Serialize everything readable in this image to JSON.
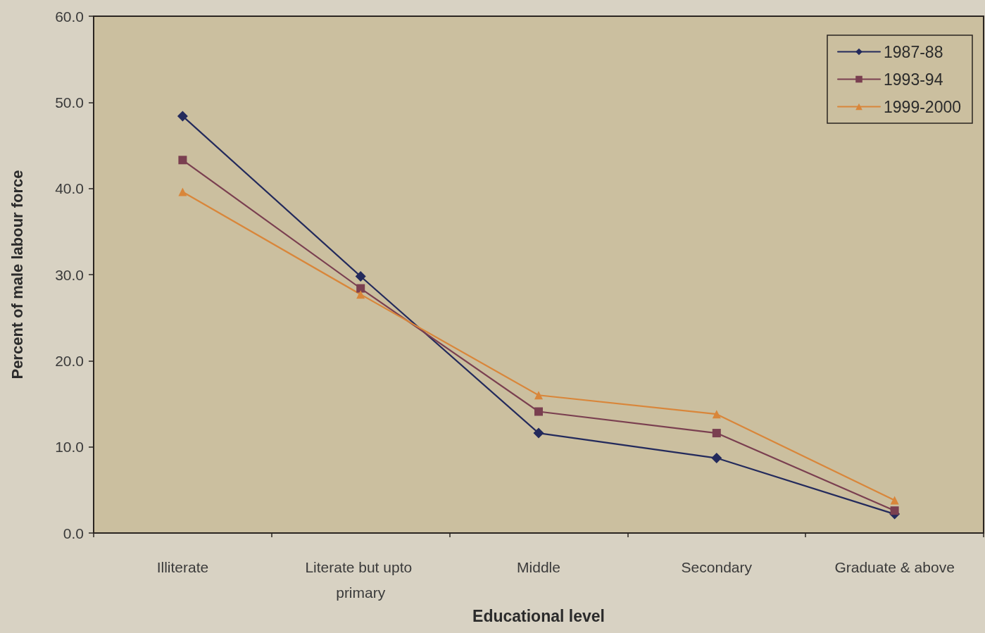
{
  "chart_data": {
    "type": "line",
    "xlabel": "Educational level",
    "ylabel": "Percent of male labour force",
    "categories": [
      "Illiterate",
      "Literate but upto primary",
      "Middle",
      "Secondary",
      "Graduate & above"
    ],
    "series": [
      {
        "name": "1987-88",
        "color": "#232a5c",
        "marker": "diamond",
        "values": [
          48.4,
          29.8,
          11.6,
          8.7,
          2.2
        ]
      },
      {
        "name": "1993-94",
        "color": "#7a3f50",
        "marker": "square",
        "values": [
          43.3,
          28.4,
          14.1,
          11.6,
          2.6
        ]
      },
      {
        "name": "1999-2000",
        "color": "#d9863a",
        "marker": "triangle",
        "values": [
          39.6,
          27.7,
          16.0,
          13.8,
          3.8
        ]
      }
    ],
    "ylim": [
      0,
      60
    ],
    "yticks": [
      {
        "value": 0,
        "label": "0.0"
      },
      {
        "value": 10,
        "label": "10.0"
      },
      {
        "value": 20,
        "label": "20.0"
      },
      {
        "value": 30,
        "label": "30.0"
      },
      {
        "value": 40,
        "label": "40.0"
      },
      {
        "value": 50,
        "label": "50.0"
      },
      {
        "value": 60,
        "label": "60.0"
      }
    ],
    "line_style": "solid",
    "legend": "top right"
  }
}
